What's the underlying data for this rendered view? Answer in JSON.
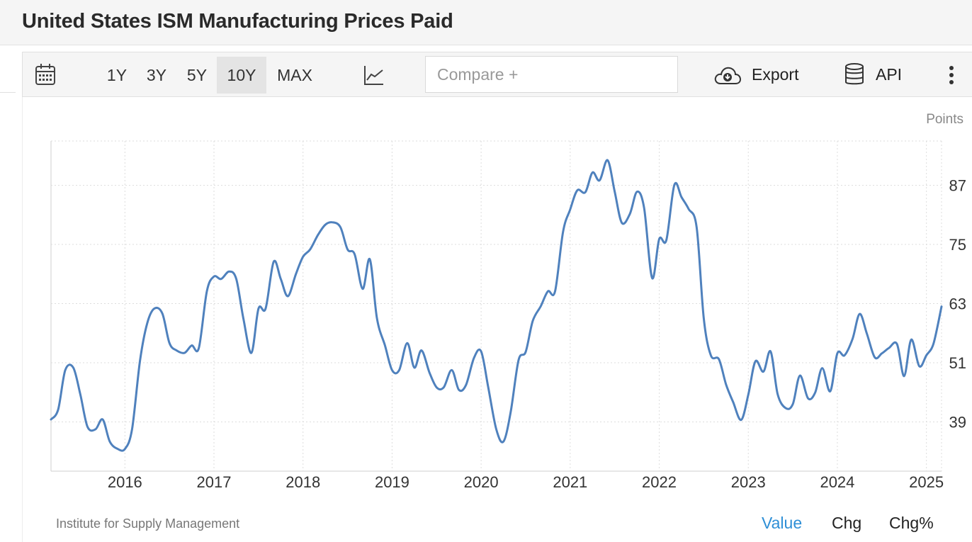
{
  "header": {
    "title": "United States ISM Manufacturing Prices Paid"
  },
  "toolbar": {
    "calendar_icon": "calendar-icon",
    "ranges": [
      {
        "label": "1Y",
        "active": false
      },
      {
        "label": "3Y",
        "active": false
      },
      {
        "label": "5Y",
        "active": false
      },
      {
        "label": "10Y",
        "active": true
      },
      {
        "label": "MAX",
        "active": false
      }
    ],
    "chart_type_icon": "line-chart-icon",
    "compare_placeholder": "Compare +",
    "export_label": "Export",
    "api_label": "API"
  },
  "colors": {
    "line": "#4f81bd",
    "accent": "#2e8fd6",
    "grid": "#dddddd"
  },
  "chart_data": {
    "type": "line",
    "title": "United States ISM Manufacturing Prices Paid",
    "unit_label": "Points",
    "xlabel": "",
    "ylabel": "Points",
    "xlim": [
      2015.17,
      2025.17
    ],
    "ylim": [
      29,
      96
    ],
    "yticks": [
      39,
      51,
      63,
      75,
      87
    ],
    "xticks": [
      2016,
      2017,
      2018,
      2019,
      2020,
      2021,
      2022,
      2023,
      2024,
      2025
    ],
    "grid": true,
    "series": [
      {
        "name": "ISM Manufacturing Prices Paid",
        "x": [
          2015.17,
          2015.25,
          2015.33,
          2015.42,
          2015.5,
          2015.58,
          2015.67,
          2015.75,
          2015.83,
          2015.92,
          2016.0,
          2016.08,
          2016.17,
          2016.25,
          2016.33,
          2016.42,
          2016.5,
          2016.58,
          2016.67,
          2016.75,
          2016.83,
          2016.92,
          2017.0,
          2017.08,
          2017.17,
          2017.25,
          2017.33,
          2017.42,
          2017.5,
          2017.58,
          2017.67,
          2017.75,
          2017.83,
          2017.92,
          2018.0,
          2018.08,
          2018.17,
          2018.25,
          2018.33,
          2018.42,
          2018.5,
          2018.58,
          2018.67,
          2018.75,
          2018.83,
          2018.92,
          2019.0,
          2019.08,
          2019.17,
          2019.25,
          2019.33,
          2019.42,
          2019.5,
          2019.58,
          2019.67,
          2019.75,
          2019.83,
          2019.92,
          2020.0,
          2020.08,
          2020.17,
          2020.25,
          2020.33,
          2020.42,
          2020.5,
          2020.58,
          2020.67,
          2020.75,
          2020.83,
          2020.92,
          2021.0,
          2021.08,
          2021.17,
          2021.25,
          2021.33,
          2021.42,
          2021.5,
          2021.58,
          2021.67,
          2021.75,
          2021.83,
          2021.92,
          2022.0,
          2022.08,
          2022.17,
          2022.25,
          2022.33,
          2022.42,
          2022.5,
          2022.58,
          2022.67,
          2022.75,
          2022.83,
          2022.92,
          2023.0,
          2023.08,
          2023.17,
          2023.25,
          2023.33,
          2023.42,
          2023.5,
          2023.58,
          2023.67,
          2023.75,
          2023.83,
          2023.92,
          2024.0,
          2024.08,
          2024.17,
          2024.25,
          2024.33,
          2024.42,
          2024.5,
          2024.58,
          2024.67,
          2024.75,
          2024.83,
          2024.92,
          2025.0,
          2025.08,
          2025.17
        ],
        "values": [
          39.5,
          41.5,
          49.5,
          50.0,
          44.5,
          38.0,
          37.5,
          39.5,
          35.0,
          33.5,
          33.5,
          37.5,
          51.5,
          59.0,
          62.0,
          61.0,
          55.0,
          53.5,
          53.0,
          54.5,
          54.0,
          65.5,
          68.5,
          68.0,
          69.5,
          68.0,
          60.0,
          53.0,
          62.0,
          62.0,
          71.5,
          68.0,
          64.5,
          69.0,
          72.5,
          74.0,
          77.0,
          79.0,
          79.5,
          78.5,
          74.0,
          73.0,
          66.0,
          72.0,
          60.0,
          54.5,
          49.5,
          49.5,
          55.0,
          50.0,
          53.5,
          49.0,
          46.0,
          46.0,
          49.5,
          45.5,
          46.5,
          52.0,
          53.3,
          46.0,
          37.5,
          35.0,
          40.8,
          51.5,
          53.2,
          59.5,
          62.5,
          65.5,
          65.5,
          77.6,
          82.1,
          86.0,
          85.6,
          89.6,
          88.0,
          92.1,
          85.7,
          79.4,
          81.2,
          85.7,
          82.4,
          68.2,
          76.1,
          75.9,
          87.1,
          84.6,
          82.2,
          78.5,
          60.0,
          52.5,
          51.7,
          46.6,
          43.0,
          39.4,
          44.5,
          51.3,
          49.2,
          53.3,
          44.6,
          41.8,
          42.6,
          48.4,
          43.8,
          44.9,
          49.9,
          45.2,
          52.9,
          52.5,
          55.8,
          60.9,
          57.0,
          52.1,
          52.9,
          54.0,
          54.8,
          48.3,
          55.7,
          50.3,
          52.5,
          54.9,
          62.4
        ]
      }
    ]
  },
  "footer": {
    "source": "Institute for Supply Management",
    "tabs": [
      {
        "label": "Value",
        "active": true
      },
      {
        "label": "Chg",
        "active": false
      },
      {
        "label": "Chg%",
        "active": false
      }
    ]
  }
}
